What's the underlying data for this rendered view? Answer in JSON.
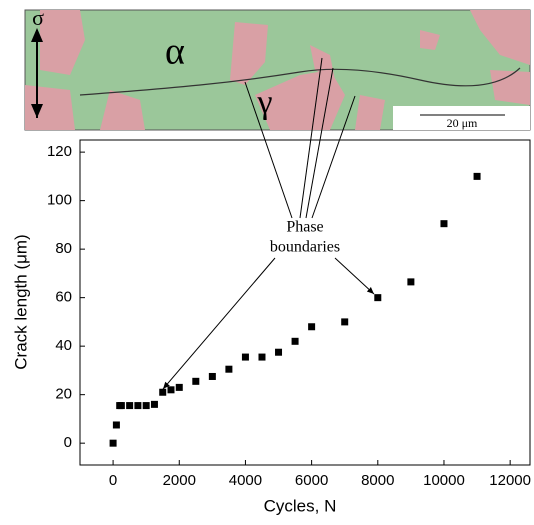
{
  "micrograph": {
    "labels": [
      "σ",
      "α",
      "γ"
    ],
    "scale_bar": "20 μm"
  },
  "chart_data": {
    "type": "scatter",
    "x": [
      0,
      100,
      250,
      500,
      750,
      1000,
      1250,
      1500,
      1750,
      2000,
      2500,
      3000,
      3500,
      4000,
      4500,
      5000,
      5500,
      6000,
      7000,
      8000,
      9000,
      10000,
      11000,
      200
    ],
    "values": [
      0,
      7.5,
      15.5,
      15.5,
      15.5,
      15.5,
      16,
      21,
      22,
      23,
      25.5,
      27.5,
      30.5,
      35.5,
      35.5,
      37.5,
      42,
      48,
      50,
      60,
      66.5,
      90.5,
      110,
      15.5
    ],
    "color": "#000000",
    "xlabel": "Cycles, N",
    "ylabel": "Crack length (μm)",
    "xlim": [
      -1000,
      12600
    ],
    "ylim": [
      -9,
      125
    ],
    "xticks": [
      0,
      2000,
      4000,
      6000,
      8000,
      10000,
      12000
    ],
    "yticks": [
      0,
      20,
      40,
      60,
      80,
      100,
      120
    ],
    "annotation": [
      "Phase",
      "boundaries"
    ]
  }
}
